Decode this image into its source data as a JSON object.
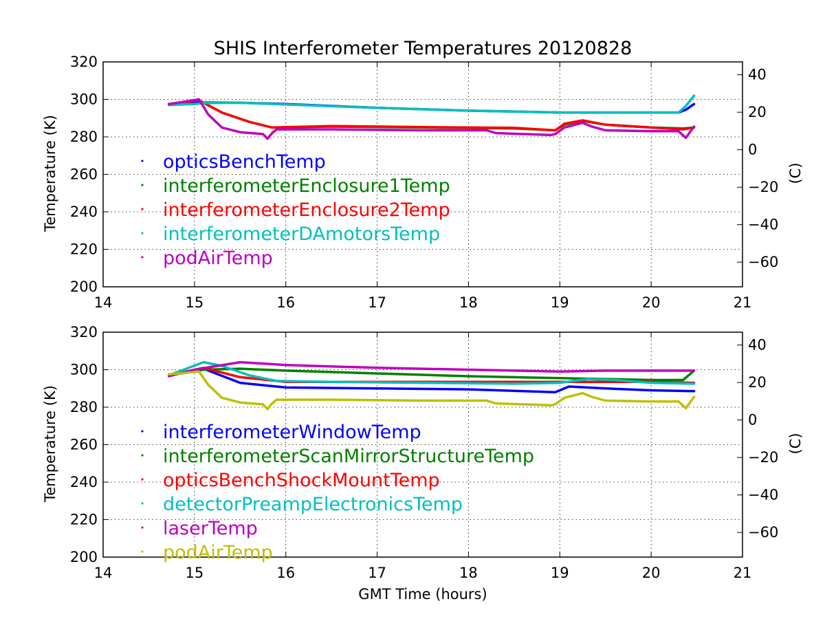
{
  "chart_data": [
    {
      "type": "line",
      "title": "SHIS Interferometer Temperatures 20120828",
      "xlabel": "",
      "ylabel": "Temperature (K)",
      "ylabel_right": "(C)",
      "xlim": [
        14,
        21
      ],
      "ylim": [
        200,
        320
      ],
      "ylim_right": [
        -73.15,
        46.85
      ],
      "xticks": [
        "14",
        "15",
        "16",
        "17",
        "18",
        "19",
        "20",
        "21"
      ],
      "yticks": [
        "200",
        "220",
        "240",
        "260",
        "280",
        "300",
        "320"
      ],
      "yticks_right": [
        "−60",
        "−40",
        "−20",
        "0",
        "20",
        "40"
      ],
      "yticks_right_values": [
        -60,
        -40,
        -20,
        0,
        20,
        40
      ],
      "grid": true,
      "legend_position": "center-left",
      "series": [
        {
          "name": "opticsBenchTemp",
          "color": "#0000ff",
          "x": [
            14.72,
            15.0,
            15.1,
            15.5,
            16.0,
            17.0,
            18.0,
            19.0,
            19.5,
            20.0,
            20.3,
            20.38,
            20.47
          ],
          "y": [
            297.5,
            298.0,
            298.3,
            298.2,
            297.5,
            295.5,
            294.0,
            293.0,
            293.0,
            293.0,
            293.0,
            294.5,
            297.5
          ]
        },
        {
          "name": "interferometerEnclosure1Temp",
          "color": "#008000",
          "x": [
            14.72,
            15.05,
            15.3,
            15.6,
            15.85,
            16.5,
            17.5,
            18.5,
            18.95,
            19.05,
            19.25,
            19.5,
            20.0,
            20.35,
            20.47
          ],
          "y": [
            297.5,
            299.5,
            293.0,
            288.0,
            285.0,
            285.5,
            285.0,
            284.5,
            283.5,
            286.5,
            288.5,
            286.5,
            285.0,
            284.5,
            285.0
          ]
        },
        {
          "name": "interferometerEnclosure2Temp",
          "color": "#ff0000",
          "x": [
            14.72,
            15.05,
            15.3,
            15.6,
            15.85,
            16.5,
            17.5,
            18.5,
            18.95,
            19.05,
            19.25,
            19.5,
            20.0,
            20.35,
            20.47
          ],
          "y": [
            297.5,
            299.5,
            293.0,
            288.0,
            285.0,
            285.8,
            285.2,
            284.8,
            283.5,
            287.0,
            288.8,
            286.5,
            285.0,
            284.0,
            285.0
          ]
        },
        {
          "name": "interferometerDAmotorsTemp",
          "color": "#00bfbf",
          "x": [
            14.72,
            15.0,
            15.1,
            15.5,
            16.0,
            17.0,
            18.0,
            19.0,
            19.5,
            20.0,
            20.3,
            20.38,
            20.47
          ],
          "y": [
            297.0,
            297.5,
            298.0,
            298.2,
            297.3,
            295.5,
            294.0,
            293.0,
            293.0,
            293.0,
            293.0,
            296.5,
            302.0
          ]
        },
        {
          "name": "podAirTemp",
          "color": "#bf00bf",
          "x": [
            14.72,
            15.05,
            15.15,
            15.3,
            15.5,
            15.75,
            15.8,
            15.85,
            15.9,
            16.5,
            17.5,
            18.2,
            18.3,
            18.9,
            18.95,
            19.05,
            19.25,
            19.35,
            19.5,
            20.0,
            20.3,
            20.38,
            20.47
          ],
          "y": [
            297.5,
            300.0,
            292.0,
            285.0,
            282.5,
            281.5,
            279.0,
            282.0,
            284.0,
            284.0,
            283.5,
            283.5,
            282.0,
            281.0,
            281.5,
            285.0,
            287.5,
            285.5,
            283.5,
            283.0,
            283.0,
            279.5,
            285.5
          ]
        }
      ]
    },
    {
      "type": "line",
      "title": "",
      "xlabel": "GMT Time (hours)",
      "ylabel": "Temperature (K)",
      "ylabel_right": "(C)",
      "xlim": [
        14,
        21
      ],
      "ylim": [
        200,
        320
      ],
      "ylim_right": [
        -73.15,
        46.85
      ],
      "xticks": [
        "14",
        "15",
        "16",
        "17",
        "18",
        "19",
        "20",
        "21"
      ],
      "yticks": [
        "200",
        "220",
        "240",
        "260",
        "280",
        "300",
        "320"
      ],
      "yticks_right": [
        "−60",
        "−40",
        "−20",
        "0",
        "20",
        "40"
      ],
      "yticks_right_values": [
        -60,
        -40,
        -20,
        0,
        20,
        40
      ],
      "grid": true,
      "legend_position": "center-left",
      "series": [
        {
          "name": "interferometerWindowTemp",
          "color": "#0000ff",
          "x": [
            14.72,
            15.1,
            15.5,
            16.0,
            17.0,
            18.0,
            18.95,
            19.1,
            19.5,
            20.0,
            20.47
          ],
          "y": [
            297.0,
            300.5,
            293.0,
            290.5,
            290.0,
            289.5,
            288.0,
            291.0,
            290.0,
            289.0,
            288.5
          ]
        },
        {
          "name": "interferometerScanMirrorStructureTemp",
          "color": "#008000",
          "x": [
            14.72,
            15.1,
            15.5,
            16.0,
            17.0,
            18.0,
            19.0,
            19.5,
            20.0,
            20.35,
            20.47
          ],
          "y": [
            297.0,
            300.0,
            300.5,
            299.5,
            298.0,
            296.5,
            295.5,
            295.0,
            294.5,
            294.5,
            299.5
          ]
        },
        {
          "name": "opticsBenchShockMountTemp",
          "color": "#ff0000",
          "x": [
            14.72,
            15.1,
            15.5,
            16.0,
            17.0,
            18.0,
            19.0,
            19.5,
            20.0,
            20.47
          ],
          "y": [
            297.0,
            301.0,
            296.0,
            293.5,
            293.5,
            293.5,
            293.5,
            293.5,
            293.5,
            293.0
          ]
        },
        {
          "name": "detectorPreampElectronicsTemp",
          "color": "#00bfbf",
          "x": [
            14.72,
            15.1,
            15.3,
            15.6,
            15.9,
            16.5,
            17.5,
            18.5,
            19.0,
            19.3,
            19.6,
            20.0,
            20.47
          ],
          "y": [
            297.0,
            304.0,
            302.0,
            297.0,
            294.0,
            293.5,
            293.0,
            292.5,
            293.0,
            295.0,
            294.5,
            293.0,
            292.5
          ]
        },
        {
          "name": "laserTemp",
          "color": "#bf00bf",
          "x": [
            14.72,
            15.0,
            15.5,
            16.0,
            17.0,
            18.0,
            19.0,
            19.5,
            20.0,
            20.47
          ],
          "y": [
            296.5,
            300.0,
            304.0,
            302.5,
            301.0,
            300.0,
            299.0,
            299.5,
            299.5,
            299.5
          ]
        },
        {
          "name": "podAirTemp",
          "color": "#bfbf00",
          "x": [
            14.72,
            15.05,
            15.15,
            15.3,
            15.5,
            15.75,
            15.8,
            15.85,
            15.9,
            16.5,
            17.5,
            18.2,
            18.3,
            18.9,
            18.95,
            19.05,
            19.25,
            19.35,
            19.5,
            20.0,
            20.3,
            20.38,
            20.47
          ],
          "y": [
            297.5,
            299.0,
            292.0,
            285.0,
            282.5,
            281.5,
            279.0,
            282.0,
            284.0,
            284.0,
            283.5,
            283.5,
            282.0,
            281.0,
            281.5,
            285.0,
            287.5,
            285.5,
            283.5,
            283.0,
            283.0,
            279.5,
            285.5
          ]
        }
      ]
    }
  ]
}
